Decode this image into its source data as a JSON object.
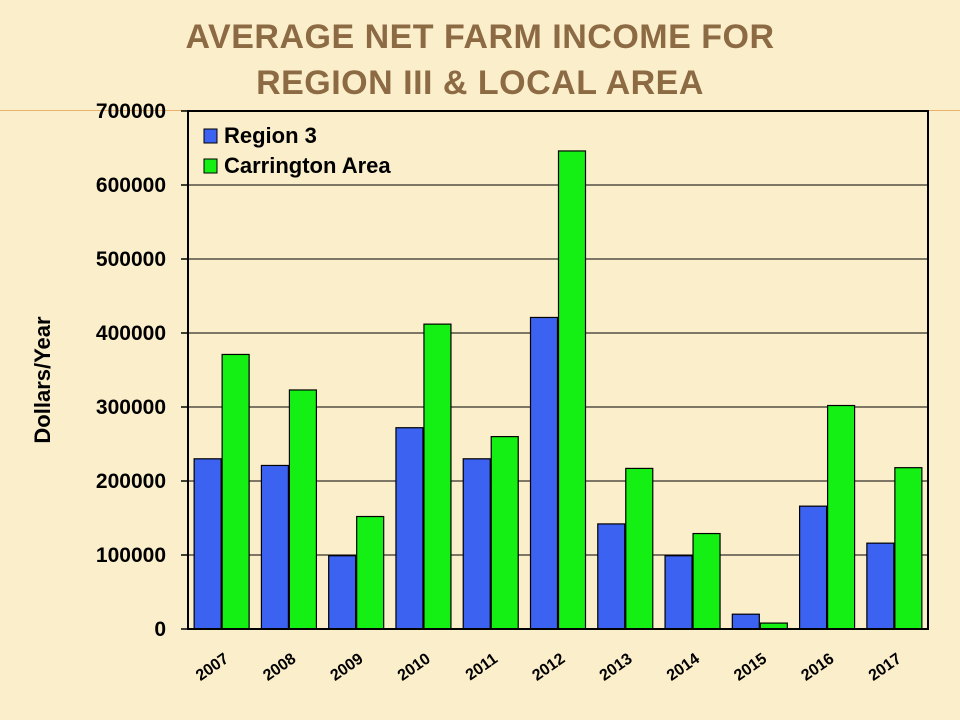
{
  "title_line1": "AVERAGE NET FARM INCOME FOR",
  "title_line2": "REGION III & LOCAL AREA",
  "colors": {
    "background": "#fbeecb",
    "title": "#8c6a44",
    "region3": "#3b62f0",
    "carrington": "#14f014"
  },
  "chart_data": {
    "type": "bar",
    "categories": [
      "2007",
      "2008",
      "2009",
      "2010",
      "2011",
      "2012",
      "2013",
      "2014",
      "2015",
      "2016",
      "2017"
    ],
    "series": [
      {
        "name": "Region 3",
        "color": "#3b62f0",
        "values": [
          230000,
          221000,
          99000,
          272000,
          230000,
          421000,
          142000,
          99000,
          20000,
          166000,
          116000
        ]
      },
      {
        "name": "Carrington Area",
        "color": "#14f014",
        "values": [
          371000,
          323000,
          152000,
          412000,
          260000,
          646000,
          217000,
          129000,
          8000,
          302000,
          218000
        ]
      }
    ],
    "title": "AVERAGE NET FARM INCOME FOR REGION III & LOCAL AREA",
    "xlabel": "",
    "ylabel": "Dollars/Year",
    "ylim": [
      0,
      700000
    ],
    "yticks": [
      "0",
      "100000",
      "200000",
      "300000",
      "400000",
      "500000",
      "600000",
      "700000"
    ],
    "grid": true,
    "legend_position": "top-left"
  }
}
